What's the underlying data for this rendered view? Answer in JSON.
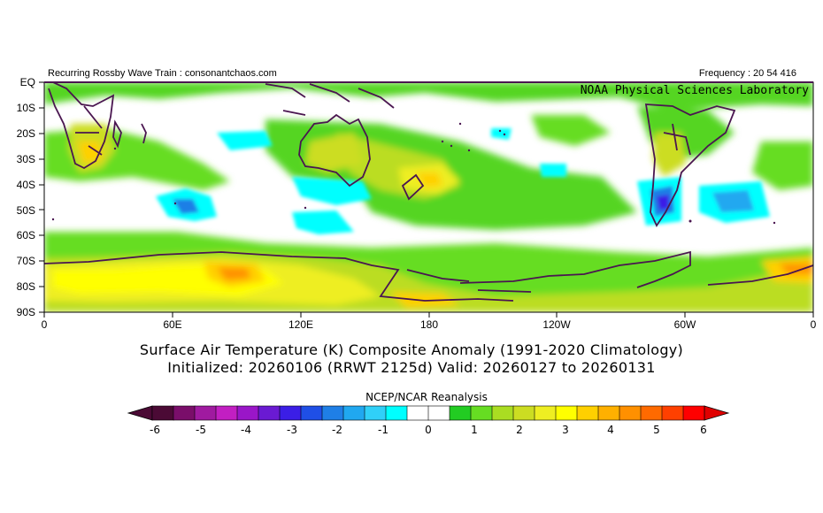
{
  "header": {
    "left": "Recurring Rossby Wave Train : consonantchaos.com",
    "right": "Frequency : 20 54 416",
    "org": "NOAA Physical Sciences Laboratory"
  },
  "map": {
    "lat_labels": [
      "EQ",
      "10S",
      "20S",
      "30S",
      "40S",
      "50S",
      "60S",
      "70S",
      "80S",
      "90S"
    ],
    "lon_labels": [
      "0",
      "60E",
      "120E",
      "180",
      "120W",
      "60W",
      "0"
    ],
    "colors": {
      "land_outline": "#4a1650",
      "ocean_background": "#ffffff"
    }
  },
  "title": {
    "line1": "Surface Air Temperature (K) Composite Anomaly (1991-2020 Climatology)",
    "line2": "Initialized: 20260106 (RRWT 2125d) Valid: 20260127 to 20260131"
  },
  "source": "NCEP/NCAR Reanalysis",
  "colorbar": {
    "labels": [
      "-6",
      "-5",
      "-4",
      "-3",
      "-2",
      "-1",
      "0",
      "1",
      "2",
      "3",
      "4",
      "5",
      "6"
    ],
    "colors": [
      "#4b0a35",
      "#7a0e6a",
      "#a01aa0",
      "#c21fc2",
      "#9a16c8",
      "#6a1ad2",
      "#3b1ee6",
      "#1f4fe6",
      "#1f7fe6",
      "#20a8f0",
      "#30d0f8",
      "#00ffff",
      "#ffffff",
      "#ffffff",
      "#22cc22",
      "#66dd22",
      "#aadd22",
      "#ccdd22",
      "#eeee22",
      "#ffff00",
      "#ffd000",
      "#ffb000",
      "#ff9000",
      "#ff6a00",
      "#ff4000",
      "#ff0000"
    ],
    "left_arrow_color": "#4b0a35",
    "right_arrow_color": "#e00000"
  }
}
